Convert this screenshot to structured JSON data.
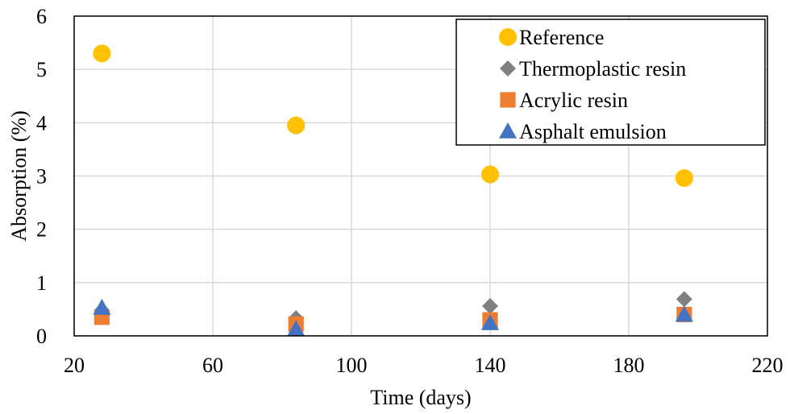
{
  "chart_data": {
    "type": "scatter",
    "xlabel": "Time (days)",
    "ylabel": "Absorption (%)",
    "xlim": [
      20,
      220
    ],
    "ylim": [
      0,
      6
    ],
    "x_ticks": [
      20,
      60,
      100,
      140,
      180,
      220
    ],
    "y_ticks": [
      0,
      1,
      2,
      3,
      4,
      5,
      6
    ],
    "grid": true,
    "legend_position": "top-right",
    "series": [
      {
        "name": "Reference",
        "marker": "circle",
        "color": "#FFC000",
        "x": [
          28,
          84,
          140,
          196
        ],
        "y": [
          5.3,
          3.95,
          3.03,
          2.96
        ]
      },
      {
        "name": "Thermoplastic resin",
        "marker": "diamond",
        "color": "#808080",
        "x": [
          28,
          84,
          140,
          196
        ],
        "y": [
          0.48,
          0.33,
          0.56,
          0.69
        ]
      },
      {
        "name": "Acrylic resin",
        "marker": "square",
        "color": "#ED7D31",
        "x": [
          28,
          84,
          140,
          196
        ],
        "y": [
          0.35,
          0.22,
          0.3,
          0.4
        ]
      },
      {
        "name": "Asphalt emulsion",
        "marker": "triangle",
        "color": "#4472C4",
        "x": [
          28,
          84,
          140,
          196
        ],
        "y": [
          0.53,
          0.13,
          0.24,
          0.4
        ]
      }
    ]
  }
}
